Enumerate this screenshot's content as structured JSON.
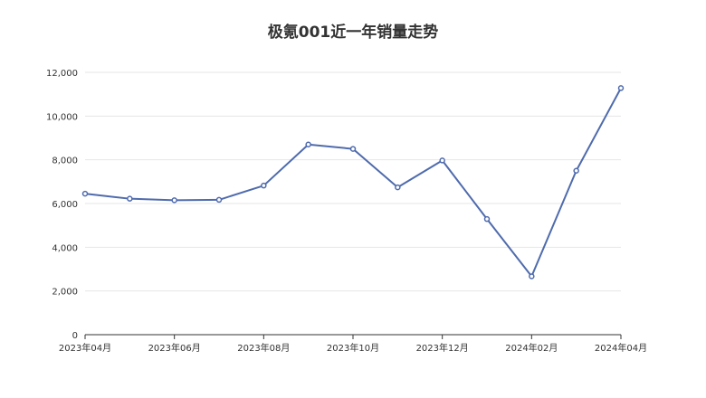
{
  "chart_data": {
    "type": "line",
    "title": "极氪001近一年销量走势",
    "xlabel": "",
    "ylabel": "",
    "x": [
      "2023年04月",
      "2023年05月",
      "2023年06月",
      "2023年07月",
      "2023年08月",
      "2023年09月",
      "2023年10月",
      "2023年11月",
      "2023年12月",
      "2024年01月",
      "2024年02月",
      "2024年03月",
      "2024年04月"
    ],
    "x_tick_labels": [
      "2023年04月",
      "2023年06月",
      "2023年08月",
      "2023年10月",
      "2023年12月",
      "2024年02月",
      "2024年04月"
    ],
    "series": [
      {
        "values": [
          6450,
          6220,
          6150,
          6170,
          6820,
          8700,
          8500,
          6740,
          7970,
          5290,
          2670,
          7500,
          11280
        ]
      }
    ],
    "ylim": [
      0,
      12000
    ],
    "y_ticks": [
      0,
      2000,
      4000,
      6000,
      8000,
      10000,
      12000
    ],
    "y_tick_labels": [
      "0",
      "2,000",
      "4,000",
      "6,000",
      "8,000",
      "10,000",
      "12,000"
    ],
    "grid": true,
    "legend": "none",
    "colors": {
      "series": "#4f6bad",
      "axis": "#333333",
      "grid": "#e6e6e6"
    }
  }
}
